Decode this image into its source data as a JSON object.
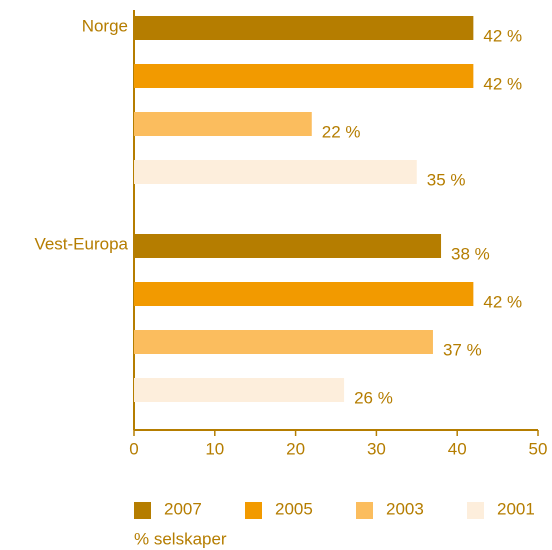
{
  "chart_data": {
    "type": "bar",
    "orientation": "horizontal",
    "categories": [
      "Norge",
      "Vest-Europa"
    ],
    "series": [
      {
        "name": "2007",
        "color": "#b57d00",
        "values": [
          42,
          38
        ],
        "value_labels": [
          "42 %",
          "38 %"
        ]
      },
      {
        "name": "2005",
        "color": "#f29a00",
        "values": [
          42,
          42
        ],
        "value_labels": [
          "42 %",
          "42 %"
        ]
      },
      {
        "name": "2003",
        "color": "#fbbd5e",
        "values": [
          22,
          37
        ],
        "value_labels": [
          "22 %",
          "37 %"
        ]
      },
      {
        "name": "2001",
        "color": "#fdeedc",
        "values": [
          35,
          26
        ],
        "value_labels": [
          "35 %",
          "26 %"
        ]
      }
    ],
    "xlabel": "% selskaper",
    "xlim": [
      0,
      50
    ],
    "xticks": [
      0,
      10,
      20,
      30,
      40,
      50
    ],
    "legend": "bottom"
  }
}
